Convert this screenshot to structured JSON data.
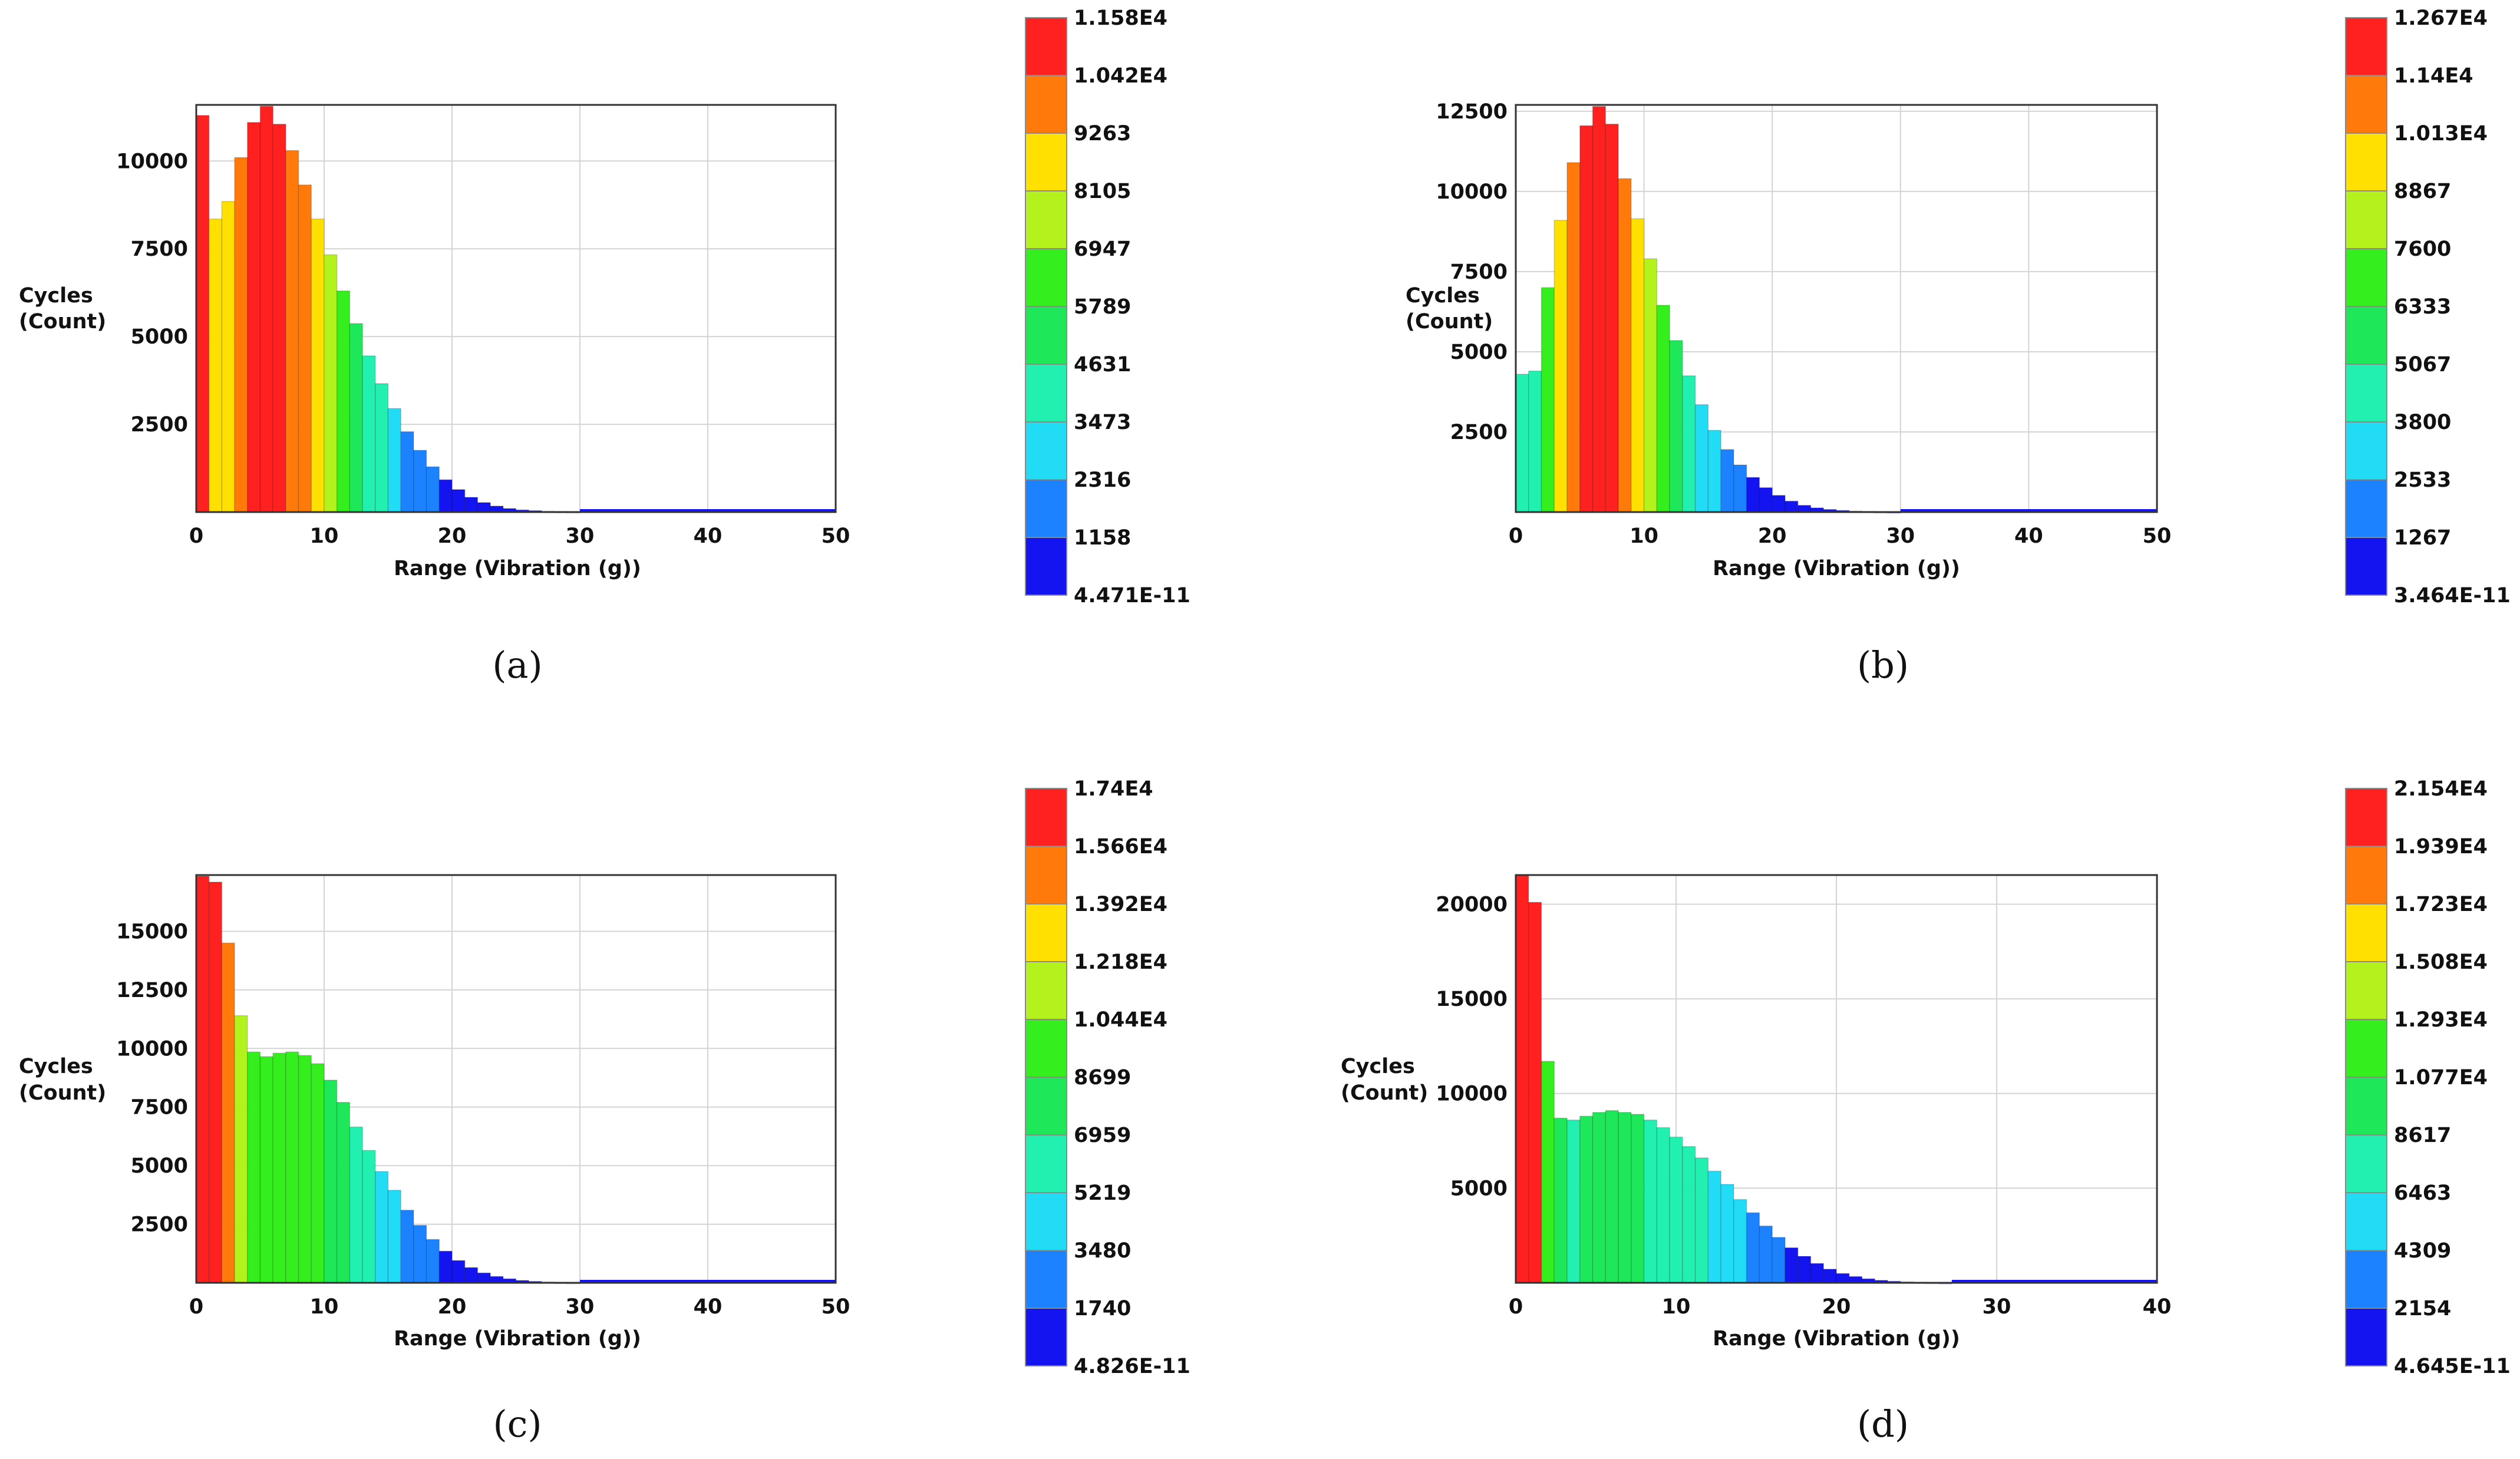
{
  "chart_data": [
    {
      "type": "bar",
      "panel": "(a)",
      "xlabel": "Range (Vibration (g))",
      "ylabel": [
        "Cycles",
        "(Count)"
      ],
      "xlim": [
        0,
        50
      ],
      "ylim": [
        0,
        11600
      ],
      "xticks": [
        "0",
        "10",
        "20",
        "30",
        "40",
        "50"
      ],
      "yticks": [
        2500,
        5000,
        7500,
        10000
      ],
      "bin_width": 1,
      "values": [
        11300,
        8350,
        8850,
        10100,
        11100,
        11560,
        11050,
        10300,
        9320,
        8350,
        7330,
        6300,
        5370,
        4450,
        3660,
        2950,
        2290,
        1760,
        1290,
        920,
        640,
        420,
        270,
        170,
        100,
        60,
        40,
        25,
        15,
        10
      ],
      "colorbar": {
        "max": 11580,
        "labels": [
          "1.158E4",
          "1.042E4",
          "9263",
          "8105",
          "6947",
          "5789",
          "4631",
          "3473",
          "2316",
          "1158",
          "4.471E-11"
        ]
      }
    },
    {
      "type": "bar",
      "panel": "(b)",
      "xlabel": "Range (Vibration (g))",
      "ylabel": [
        "Cycles",
        "(Count)"
      ],
      "xlim": [
        0,
        50
      ],
      "ylim": [
        0,
        12700
      ],
      "xticks": [
        "0",
        "10",
        "20",
        "30",
        "40",
        "50"
      ],
      "yticks": [
        2500,
        5000,
        7500,
        10000,
        12500
      ],
      "bin_width": 1,
      "values": [
        4300,
        4400,
        7000,
        9100,
        10900,
        12050,
        12650,
        12100,
        10400,
        9150,
        7900,
        6450,
        5350,
        4250,
        3350,
        2550,
        1950,
        1470,
        1080,
        760,
        520,
        340,
        210,
        130,
        80,
        50,
        30,
        20,
        10,
        6
      ],
      "colorbar": {
        "max": 12670,
        "labels": [
          "1.267E4",
          "1.14E4",
          "1.013E4",
          "8867",
          "7600",
          "6333",
          "5067",
          "3800",
          "2533",
          "1267",
          "3.464E-11"
        ]
      }
    },
    {
      "type": "bar",
      "panel": "(c)",
      "xlabel": "Range (Vibration (g))",
      "ylabel": [
        "Cycles",
        "(Count)"
      ],
      "xlim": [
        0,
        50
      ],
      "ylim": [
        0,
        17400
      ],
      "xticks": [
        "0",
        "10",
        "20",
        "30",
        "40",
        "50"
      ],
      "yticks": [
        2500,
        5000,
        7500,
        10000,
        12500,
        15000
      ],
      "bin_width": 1,
      "values": [
        17350,
        17100,
        14500,
        11400,
        9850,
        9650,
        9800,
        9850,
        9700,
        9350,
        8650,
        7700,
        6650,
        5650,
        4750,
        3950,
        3100,
        2450,
        1850,
        1350,
        950,
        650,
        420,
        270,
        170,
        100,
        60,
        35,
        20,
        12
      ],
      "colorbar": {
        "max": 17400,
        "labels": [
          "1.74E4",
          "1.566E4",
          "1.392E4",
          "1.218E4",
          "1.044E4",
          "8699",
          "6959",
          "5219",
          "3480",
          "1740",
          "4.826E-11"
        ]
      }
    },
    {
      "type": "bar",
      "panel": "(d)",
      "xlabel": "Range (Vibration (g))",
      "ylabel": [
        "Cycles",
        "(Count)"
      ],
      "xlim": [
        0,
        40
      ],
      "ylim": [
        0,
        21540
      ],
      "xticks": [
        "0",
        "10",
        "20",
        "30",
        "40"
      ],
      "yticks": [
        5000,
        10000,
        15000,
        20000
      ],
      "bin_width": 0.8,
      "values": [
        21540,
        20100,
        11700,
        8700,
        8600,
        8800,
        9000,
        9100,
        9000,
        8900,
        8600,
        8200,
        7700,
        7200,
        6600,
        5900,
        5200,
        4400,
        3700,
        3000,
        2400,
        1850,
        1400,
        1020,
        720,
        490,
        330,
        210,
        130,
        80,
        50,
        30,
        18,
        10
      ],
      "colorbar": {
        "max": 21540,
        "labels": [
          "2.154E4",
          "1.939E4",
          "1.723E4",
          "1.508E4",
          "1.293E4",
          "1.077E4",
          "8617",
          "6463",
          "4309",
          "2154",
          "4.645E-11"
        ]
      }
    }
  ],
  "colors": {
    "bands_top_to_bottom": [
      "#ff2020",
      "#ff7a0a",
      "#ffe000",
      "#b4f21e",
      "#35ee1e",
      "#1ee85a",
      "#22f0b0",
      "#22dcf5",
      "#1c82ff",
      "#1414f0"
    ],
    "grid": "#d4d4d4",
    "axis": "#333333"
  }
}
